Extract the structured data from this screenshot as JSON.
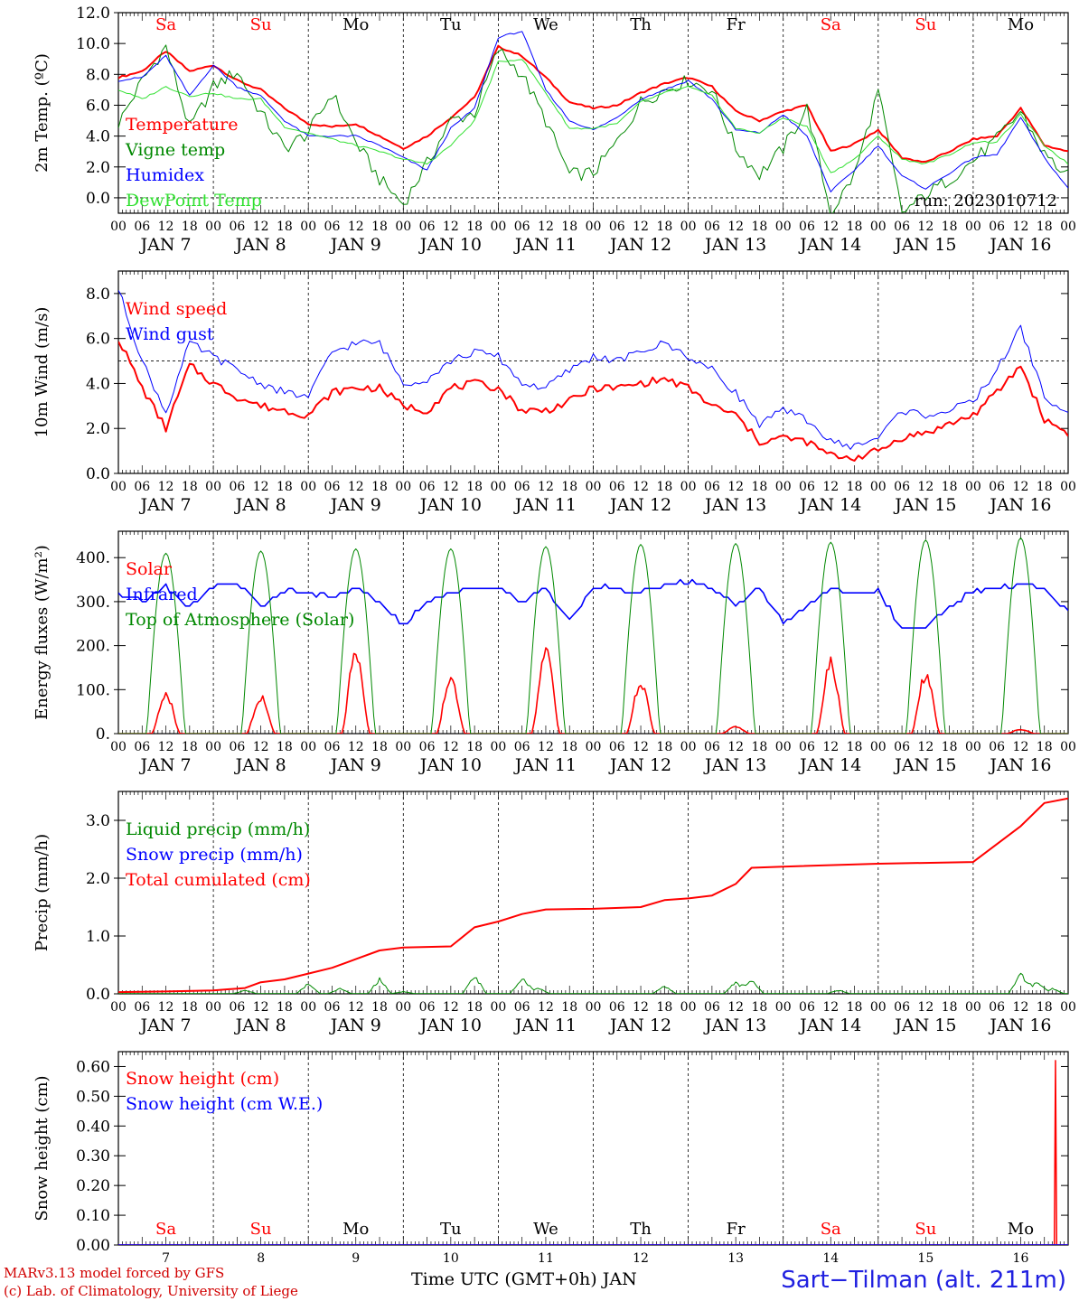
{
  "meta": {
    "run_label": "run: 2023010712",
    "credit_line1": "MARv3.13 model forced by GFS",
    "credit_line2": "(c) Lab. of Climatology, University of Liege",
    "site_label": "Sart−Tilman (alt. 211m)",
    "time_axis_label": "Time UTC (GMT+0h) JAN"
  },
  "days": {
    "weekday_labels": [
      "Sa",
      "Su",
      "Mo",
      "Tu",
      "We",
      "Th",
      "Fr",
      "Sa",
      "Su",
      "Mo"
    ],
    "weekday_colors": [
      "#ff0000",
      "#ff0000",
      "#000000",
      "#000000",
      "#000000",
      "#000000",
      "#000000",
      "#ff0000",
      "#ff0000",
      "#000000"
    ],
    "date_labels": [
      "JAN  7",
      "JAN  8",
      "JAN  9",
      "JAN 10",
      "JAN 11",
      "JAN 12",
      "JAN 13",
      "JAN 14",
      "JAN 15",
      "JAN 16"
    ],
    "day_numbers": [
      "7",
      "8",
      "9",
      "10",
      "11",
      "12",
      "13",
      "14",
      "15",
      "16"
    ],
    "hour_labels": [
      "00",
      "06",
      "12",
      "18"
    ],
    "final_hour_label": "00"
  },
  "chart_data": [
    {
      "id": "temperature",
      "type": "line",
      "ylabel": "2m Temp. (ºC)",
      "ylim": [
        -1,
        12
      ],
      "yticks": [
        0,
        2,
        4,
        6,
        8,
        10,
        12
      ],
      "ytick_labels": [
        "0.0",
        "2.0",
        "4.0",
        "6.0",
        "8.0",
        "10.0",
        "12.0"
      ],
      "reference_line": 0,
      "x_hours": [
        0,
        6,
        12,
        18,
        24,
        30,
        36,
        42,
        48,
        54,
        60,
        66,
        72,
        78,
        84,
        90,
        96,
        102,
        108,
        114,
        120,
        126,
        132,
        138,
        144,
        150,
        156,
        162,
        168,
        174,
        180,
        186,
        192,
        198,
        204,
        210,
        216,
        222,
        228,
        234,
        240
      ],
      "series": [
        {
          "name": "Temperature",
          "color": "#ff0000",
          "width": 2,
          "values": [
            7.8,
            8.2,
            9.5,
            8.2,
            8.6,
            7.6,
            7.0,
            5.8,
            4.8,
            4.6,
            4.8,
            4.0,
            3.2,
            4.0,
            5.2,
            6.5,
            9.8,
            9.2,
            7.8,
            6.2,
            5.8,
            6.0,
            6.8,
            7.4,
            7.8,
            7.2,
            5.6,
            5.0,
            5.6,
            6.0,
            3.0,
            3.5,
            4.4,
            2.6,
            2.3,
            3.0,
            3.8,
            4.0,
            5.8,
            3.4,
            3.0
          ]
        },
        {
          "name": "Vigne temp",
          "color": "#008800",
          "width": 1,
          "values": [
            4.8,
            7.6,
            9.8,
            4.5,
            7.2,
            8.2,
            5.5,
            3.2,
            4.2,
            6.8,
            3.6,
            1.2,
            -0.4,
            2.2,
            5.0,
            5.5,
            9.6,
            8.0,
            5.0,
            1.5,
            1.6,
            3.6,
            6.2,
            7.0,
            7.6,
            7.0,
            3.2,
            1.5,
            3.2,
            5.8,
            -1.0,
            1.5,
            6.9,
            -1.0,
            0.2,
            1.2,
            2.4,
            3.8,
            5.6,
            2.8,
            1.4
          ]
        },
        {
          "name": "Humidex",
          "color": "#0000ff",
          "width": 1,
          "values": [
            7.6,
            7.8,
            9.2,
            6.6,
            8.6,
            7.2,
            6.6,
            5.0,
            4.0,
            4.0,
            4.0,
            3.4,
            2.6,
            1.8,
            4.5,
            5.8,
            10.4,
            10.8,
            7.0,
            5.0,
            4.4,
            5.2,
            6.4,
            7.0,
            7.6,
            6.4,
            4.4,
            4.2,
            5.4,
            4.0,
            0.4,
            1.8,
            3.4,
            1.4,
            0.6,
            1.6,
            2.6,
            2.8,
            5.2,
            2.6,
            0.6
          ]
        },
        {
          "name": "DewPoint Temp",
          "color": "#30e030",
          "width": 1,
          "values": [
            7.0,
            6.4,
            7.2,
            6.6,
            6.8,
            6.4,
            6.4,
            4.6,
            4.2,
            3.8,
            3.4,
            3.0,
            2.5,
            2.2,
            3.4,
            5.0,
            8.8,
            9.0,
            6.8,
            4.5,
            4.5,
            4.8,
            6.2,
            6.8,
            7.2,
            6.6,
            4.5,
            4.2,
            5.2,
            4.6,
            1.6,
            2.5,
            4.0,
            2.5,
            2.2,
            2.8,
            3.6,
            3.6,
            5.4,
            3.4,
            2.2
          ]
        }
      ]
    },
    {
      "id": "wind",
      "type": "line",
      "ylabel": "10m Wind (m/s)",
      "ylim": [
        0,
        9
      ],
      "yticks": [
        0,
        2,
        4,
        6,
        8
      ],
      "ytick_labels": [
        "0.0",
        "2.0",
        "4.0",
        "6.0",
        "8.0"
      ],
      "reference_line": 5,
      "x_hours": [
        0,
        6,
        12,
        18,
        24,
        30,
        36,
        42,
        48,
        54,
        60,
        66,
        72,
        78,
        84,
        90,
        96,
        102,
        108,
        114,
        120,
        126,
        132,
        138,
        144,
        150,
        156,
        162,
        168,
        174,
        180,
        186,
        192,
        198,
        204,
        210,
        216,
        222,
        228,
        234,
        240
      ],
      "series": [
        {
          "name": "Wind speed",
          "color": "#ff0000",
          "width": 2,
          "values": [
            6.0,
            3.8,
            2.0,
            4.8,
            4.0,
            3.4,
            3.0,
            2.8,
            2.6,
            3.6,
            3.8,
            3.8,
            3.0,
            2.8,
            3.8,
            4.0,
            3.8,
            2.8,
            2.8,
            3.2,
            3.8,
            3.8,
            4.0,
            4.2,
            3.8,
            3.0,
            2.6,
            1.4,
            1.6,
            1.4,
            0.8,
            0.7,
            1.0,
            1.6,
            1.8,
            2.2,
            2.6,
            3.6,
            4.8,
            2.4,
            1.8
          ]
        },
        {
          "name": "Wind gust",
          "color": "#0000ff",
          "width": 1,
          "values": [
            8.2,
            5.0,
            2.7,
            5.8,
            5.2,
            4.6,
            4.0,
            3.6,
            3.4,
            5.4,
            5.8,
            5.8,
            4.0,
            4.2,
            5.0,
            5.4,
            5.2,
            4.0,
            3.8,
            4.6,
            5.2,
            5.0,
            5.4,
            5.8,
            5.2,
            4.6,
            3.6,
            2.2,
            2.8,
            2.4,
            1.4,
            1.2,
            1.6,
            2.8,
            2.6,
            2.8,
            3.2,
            4.6,
            6.5,
            3.4,
            2.6
          ]
        }
      ]
    },
    {
      "id": "energy",
      "type": "line",
      "ylabel": "Energy fluxes (W/m²)",
      "ylim": [
        0,
        460
      ],
      "yticks": [
        0,
        100,
        200,
        300,
        400
      ],
      "ytick_labels": [
        "0.",
        "100.",
        "200.",
        "300.",
        "400."
      ],
      "reference_line": null,
      "x_hours": [
        0,
        6,
        12,
        18,
        24,
        30,
        36,
        42,
        48,
        54,
        60,
        66,
        72,
        78,
        84,
        90,
        96,
        102,
        108,
        114,
        120,
        126,
        132,
        138,
        144,
        150,
        156,
        162,
        168,
        174,
        180,
        186,
        192,
        198,
        204,
        210,
        216,
        222,
        228,
        234,
        240
      ],
      "series": [
        {
          "name": "Solar",
          "color": "#ff0000",
          "width": 1.6,
          "daily_peak_hour": 12,
          "daily_peaks": [
            115,
            105,
            240,
            160,
            240,
            145,
            20,
            205,
            170,
            12
          ]
        },
        {
          "name": "Infrared",
          "color": "#0000ff",
          "width": 1.6,
          "values": [
            320,
            300,
            335,
            285,
            335,
            340,
            290,
            325,
            320,
            315,
            330,
            300,
            245,
            300,
            320,
            330,
            330,
            300,
            330,
            255,
            335,
            330,
            320,
            340,
            345,
            330,
            290,
            330,
            250,
            290,
            330,
            320,
            325,
            240,
            240,
            290,
            325,
            330,
            340,
            330,
            275
          ]
        },
        {
          "name": "Top of Atmosphere (Solar)",
          "color": "#008800",
          "width": 1,
          "daily_peak_hour": 12,
          "daily_peaks": [
            410,
            415,
            420,
            420,
            425,
            430,
            432,
            435,
            440,
            445
          ]
        }
      ]
    },
    {
      "id": "precip",
      "type": "line",
      "ylabel": "Precip (mm/h)",
      "ylim": [
        0,
        3.5
      ],
      "yticks": [
        0,
        1,
        2,
        3
      ],
      "ytick_labels": [
        "0.0",
        "1.0",
        "2.0",
        "3.0"
      ],
      "reference_line": null,
      "series": [
        {
          "name": "Liquid precip (mm/h)",
          "color": "#008800",
          "width": 1,
          "spikes": [
            [
              32,
              0.08
            ],
            [
              48,
              0.25
            ],
            [
              56,
              0.12
            ],
            [
              66,
              0.35
            ],
            [
              72,
              0.05
            ],
            [
              90,
              0.45
            ],
            [
              102,
              0.4
            ],
            [
              106,
              0.15
            ],
            [
              138,
              0.18
            ],
            [
              156,
              0.3
            ],
            [
              160,
              0.35
            ],
            [
              182,
              0.08
            ],
            [
              228,
              0.5
            ],
            [
              232,
              0.3
            ],
            [
              236,
              0.12
            ]
          ]
        },
        {
          "name": "Snow precip (mm/h)",
          "color": "#0000ff",
          "width": 1,
          "values": []
        },
        {
          "name": "Total cumulated (cm)",
          "color": "#ff0000",
          "width": 2,
          "x": [
            0,
            12,
            24,
            32,
            36,
            42,
            48,
            54,
            60,
            66,
            72,
            84,
            90,
            96,
            102,
            108,
            120,
            132,
            138,
            144,
            150,
            156,
            160,
            168,
            192,
            216,
            228,
            234,
            240
          ],
          "values": [
            0.03,
            0.04,
            0.06,
            0.1,
            0.2,
            0.25,
            0.35,
            0.45,
            0.6,
            0.75,
            0.8,
            0.82,
            1.15,
            1.25,
            1.38,
            1.46,
            1.47,
            1.5,
            1.62,
            1.65,
            1.7,
            1.9,
            2.18,
            2.2,
            2.25,
            2.28,
            2.9,
            3.3,
            3.38
          ]
        }
      ]
    },
    {
      "id": "snow",
      "type": "line",
      "ylabel": "Snow height (cm)",
      "ylim": [
        0,
        0.65
      ],
      "yticks": [
        0,
        0.1,
        0.2,
        0.3,
        0.4,
        0.5,
        0.6
      ],
      "ytick_labels": [
        "0.00",
        "0.10",
        "0.20",
        "0.30",
        "0.40",
        "0.50",
        "0.60"
      ],
      "reference_line": null,
      "series": [
        {
          "name": "Snow height (cm)",
          "color": "#ff0000",
          "width": 1.5,
          "x": [
            0,
            236.5,
            236.8,
            237.1,
            240
          ],
          "values": [
            0,
            0,
            0.62,
            0,
            0
          ]
        },
        {
          "name": "Snow height (cm W.E.)",
          "color": "#0000ff",
          "width": 1.5,
          "x": [
            0,
            240
          ],
          "values": [
            0,
            0
          ]
        }
      ]
    }
  ]
}
